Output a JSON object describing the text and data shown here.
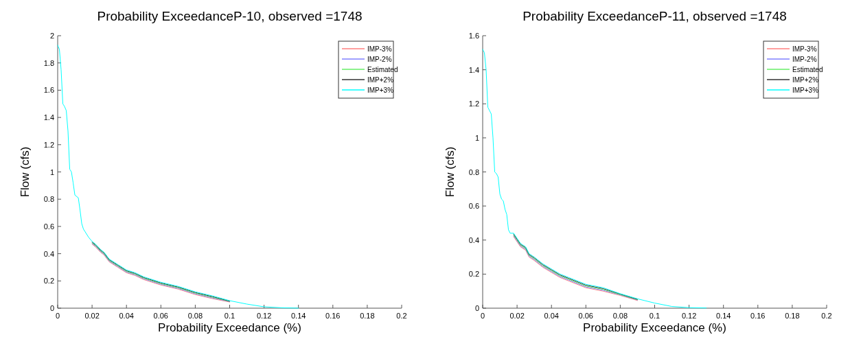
{
  "chart_data": [
    {
      "type": "line",
      "title": "Probability ExceedanceP-10, observed =1748",
      "xlabel": "Probability Exceedance (%)",
      "ylabel": "Flow (cfs)",
      "xlim": [
        0,
        0.2
      ],
      "ylim": [
        0,
        2
      ],
      "xticks": [
        0,
        0.02,
        0.04,
        0.06,
        0.08,
        0.1,
        0.12,
        0.14,
        0.16,
        0.18,
        0.2
      ],
      "yticks": [
        0,
        0.2,
        0.4,
        0.6,
        0.8,
        1,
        1.2,
        1.4,
        1.6,
        1.8,
        2
      ],
      "grid": false,
      "legend": "top right",
      "marker": "none",
      "line_style": "solid",
      "x": [
        0,
        0.001,
        0.002,
        0.003,
        0.004,
        0.005,
        0.006,
        0.007,
        0.008,
        0.009,
        0.01,
        0.012,
        0.013,
        0.014,
        0.015,
        0.016,
        0.018,
        0.02,
        0.022,
        0.025,
        0.027,
        0.03,
        0.035,
        0.04,
        0.045,
        0.05,
        0.06,
        0.07,
        0.08,
        0.09,
        0.1,
        0.11,
        0.12,
        0.13,
        0.14
      ],
      "series": [
        {
          "name": "IMP-3%",
          "color": "#ff7f7f",
          "values": [
            null,
            null,
            null,
            null,
            null,
            null,
            null,
            null,
            null,
            null,
            null,
            null,
            null,
            null,
            null,
            null,
            null,
            0.47,
            0.45,
            0.41,
            0.39,
            0.34,
            0.3,
            0.26,
            0.24,
            0.21,
            0.17,
            0.14,
            0.1,
            0.07,
            0.045,
            null,
            null,
            null,
            null
          ]
        },
        {
          "name": "IMP-2%",
          "color": "#7f7fff",
          "values": [
            null,
            null,
            null,
            null,
            null,
            null,
            null,
            null,
            null,
            null,
            null,
            null,
            null,
            null,
            null,
            null,
            null,
            0.475,
            0.455,
            0.415,
            0.395,
            0.345,
            0.305,
            0.265,
            0.245,
            0.215,
            0.175,
            0.145,
            0.105,
            0.075,
            0.048,
            null,
            null,
            null,
            null
          ]
        },
        {
          "name": "Estimated",
          "color": "#66ee66",
          "values": [
            null,
            null,
            null,
            null,
            null,
            null,
            null,
            null,
            null,
            null,
            null,
            null,
            null,
            null,
            null,
            null,
            null,
            0.48,
            0.46,
            0.42,
            0.4,
            0.35,
            0.31,
            0.27,
            0.25,
            0.22,
            0.18,
            0.15,
            0.11,
            0.08,
            0.05,
            null,
            null,
            null,
            null
          ]
        },
        {
          "name": "IMP+2%",
          "color": "#333333",
          "values": [
            null,
            null,
            null,
            null,
            null,
            null,
            null,
            null,
            null,
            null,
            null,
            null,
            null,
            null,
            null,
            null,
            null,
            0.485,
            0.465,
            0.425,
            0.405,
            0.355,
            0.315,
            0.275,
            0.255,
            0.225,
            0.185,
            0.155,
            0.115,
            0.085,
            0.052,
            null,
            null,
            null,
            null
          ]
        },
        {
          "name": "IMP+3%",
          "color": "#00ffff",
          "values": [
            1.93,
            1.9,
            1.75,
            1.5,
            1.48,
            1.45,
            1.3,
            1.02,
            1.0,
            0.92,
            0.83,
            0.81,
            0.72,
            0.62,
            0.58,
            0.56,
            0.52,
            0.49,
            0.47,
            0.43,
            0.41,
            0.36,
            0.32,
            0.28,
            0.26,
            0.23,
            0.19,
            0.16,
            0.12,
            0.09,
            0.055,
            0.03,
            0.01,
            0.003,
            0
          ]
        }
      ]
    },
    {
      "type": "line",
      "title": "Probability ExceedanceP-11, observed =1748",
      "xlabel": "Probability Exceedance (%)",
      "ylabel": "Flow (cfs)",
      "xlim": [
        0,
        0.2
      ],
      "ylim": [
        0,
        1.6
      ],
      "xticks": [
        0,
        0.02,
        0.04,
        0.06,
        0.08,
        0.1,
        0.12,
        0.14,
        0.16,
        0.18,
        0.2
      ],
      "yticks": [
        0,
        0.2,
        0.4,
        0.6,
        0.8,
        1,
        1.2,
        1.4,
        1.6
      ],
      "grid": false,
      "legend": "top right",
      "marker": "none",
      "line_style": "solid",
      "x": [
        0,
        0.001,
        0.002,
        0.003,
        0.004,
        0.005,
        0.006,
        0.007,
        0.008,
        0.009,
        0.01,
        0.011,
        0.012,
        0.013,
        0.014,
        0.015,
        0.016,
        0.018,
        0.02,
        0.022,
        0.025,
        0.027,
        0.03,
        0.035,
        0.04,
        0.045,
        0.05,
        0.06,
        0.07,
        0.08,
        0.09,
        0.1,
        0.11,
        0.12,
        0.13
      ],
      "series": [
        {
          "name": "IMP-3%",
          "color": "#ff7f7f",
          "values": [
            null,
            null,
            null,
            null,
            null,
            null,
            null,
            null,
            null,
            null,
            null,
            null,
            null,
            null,
            null,
            null,
            null,
            0.42,
            0.39,
            0.36,
            0.34,
            0.3,
            0.28,
            0.24,
            0.21,
            0.18,
            0.16,
            0.12,
            0.1,
            0.075,
            0.045,
            null,
            null,
            null,
            null
          ]
        },
        {
          "name": "IMP-2%",
          "color": "#7f7fff",
          "values": [
            null,
            null,
            null,
            null,
            null,
            null,
            null,
            null,
            null,
            null,
            null,
            null,
            null,
            null,
            null,
            null,
            null,
            0.425,
            0.395,
            0.365,
            0.345,
            0.305,
            0.285,
            0.245,
            0.215,
            0.185,
            0.165,
            0.125,
            0.105,
            0.078,
            0.048,
            null,
            null,
            null,
            null
          ]
        },
        {
          "name": "Estimated",
          "color": "#66ee66",
          "values": [
            null,
            null,
            null,
            null,
            null,
            null,
            null,
            null,
            null,
            null,
            null,
            null,
            null,
            null,
            null,
            null,
            null,
            0.43,
            0.4,
            0.37,
            0.35,
            0.31,
            0.29,
            0.25,
            0.22,
            0.19,
            0.17,
            0.13,
            0.11,
            0.08,
            0.05,
            null,
            null,
            null,
            null
          ]
        },
        {
          "name": "IMP+2%",
          "color": "#333333",
          "values": [
            null,
            null,
            null,
            null,
            null,
            null,
            null,
            null,
            null,
            null,
            null,
            null,
            null,
            null,
            null,
            null,
            null,
            0.435,
            0.405,
            0.375,
            0.355,
            0.315,
            0.295,
            0.255,
            0.225,
            0.195,
            0.175,
            0.135,
            0.115,
            0.083,
            0.052,
            null,
            null,
            null,
            null
          ]
        },
        {
          "name": "IMP+3%",
          "color": "#00ffff",
          "values": [
            1.52,
            1.5,
            1.4,
            1.18,
            1.16,
            1.14,
            1.0,
            0.8,
            0.79,
            0.77,
            0.67,
            0.64,
            0.63,
            0.58,
            0.55,
            0.46,
            0.44,
            0.44,
            0.41,
            0.38,
            0.36,
            0.32,
            0.3,
            0.26,
            0.23,
            0.2,
            0.18,
            0.14,
            0.12,
            0.085,
            0.055,
            0.03,
            0.01,
            0.003,
            0.001
          ]
        }
      ]
    }
  ]
}
